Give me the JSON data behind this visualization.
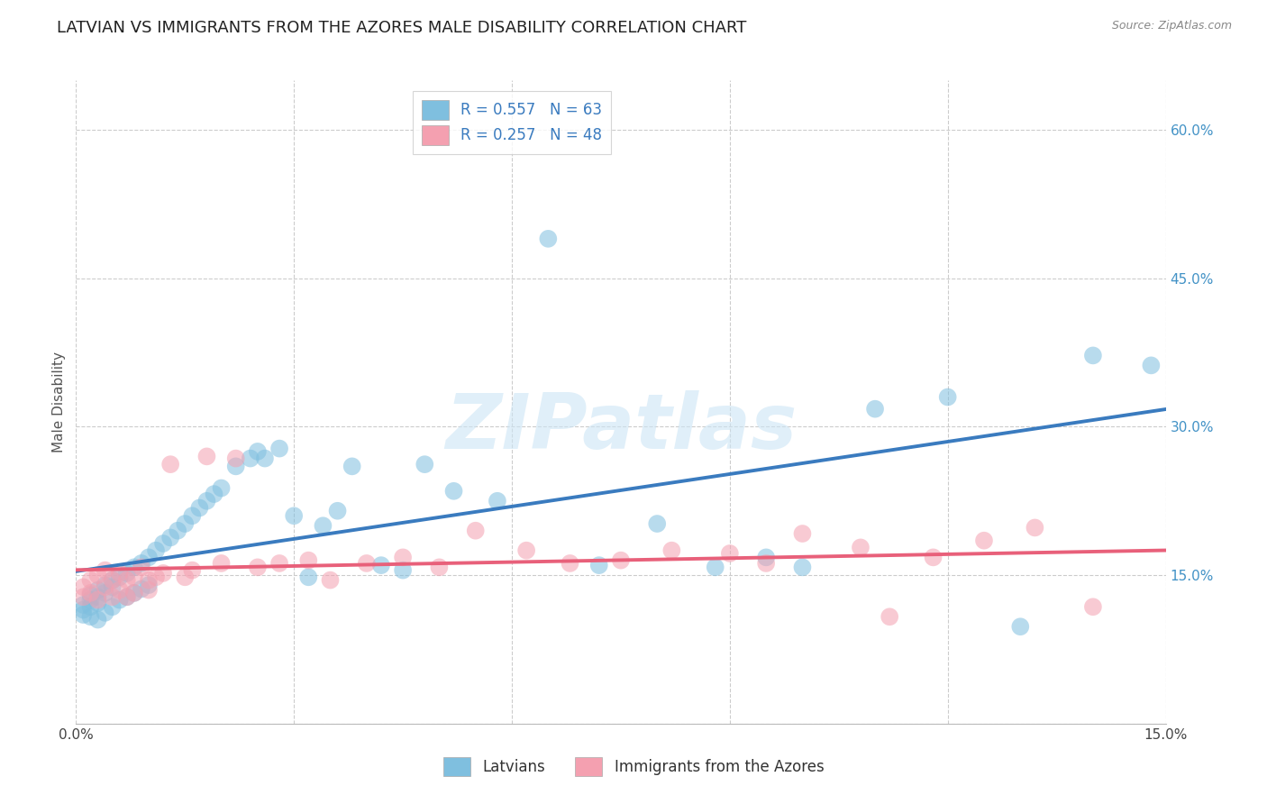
{
  "title": "LATVIAN VS IMMIGRANTS FROM THE AZORES MALE DISABILITY CORRELATION CHART",
  "source": "Source: ZipAtlas.com",
  "ylabel": "Male Disability",
  "x_min": 0.0,
  "x_max": 0.15,
  "y_min": 0.0,
  "y_max": 0.65,
  "x_ticks": [
    0.0,
    0.03,
    0.06,
    0.09,
    0.12,
    0.15
  ],
  "y_ticks": [
    0.0,
    0.15,
    0.3,
    0.45,
    0.6
  ],
  "watermark": "ZIPatlas",
  "legend_label1": "Latvians",
  "legend_label2": "Immigrants from the Azores",
  "blue_color": "#7fbfdf",
  "pink_color": "#f4a0b0",
  "blue_line_color": "#3a7bbf",
  "pink_line_color": "#e8607a",
  "background_color": "#ffffff",
  "grid_color": "#cccccc",
  "title_fontsize": 13,
  "axis_label_fontsize": 11,
  "tick_fontsize": 11,
  "legend_fontsize": 12,
  "latvian_x": [
    0.001,
    0.001,
    0.001,
    0.002,
    0.002,
    0.002,
    0.002,
    0.003,
    0.003,
    0.003,
    0.003,
    0.004,
    0.004,
    0.004,
    0.005,
    0.005,
    0.005,
    0.006,
    0.006,
    0.007,
    0.007,
    0.008,
    0.008,
    0.009,
    0.009,
    0.01,
    0.01,
    0.011,
    0.012,
    0.013,
    0.014,
    0.015,
    0.016,
    0.017,
    0.018,
    0.019,
    0.02,
    0.022,
    0.024,
    0.025,
    0.026,
    0.028,
    0.03,
    0.032,
    0.034,
    0.036,
    0.038,
    0.042,
    0.045,
    0.048,
    0.052,
    0.058,
    0.065,
    0.072,
    0.08,
    0.088,
    0.095,
    0.1,
    0.11,
    0.12,
    0.13,
    0.14,
    0.148
  ],
  "latvian_y": [
    0.12,
    0.115,
    0.11,
    0.13,
    0.125,
    0.118,
    0.108,
    0.135,
    0.128,
    0.122,
    0.105,
    0.14,
    0.132,
    0.112,
    0.145,
    0.138,
    0.118,
    0.148,
    0.125,
    0.152,
    0.128,
    0.158,
    0.132,
    0.162,
    0.136,
    0.168,
    0.14,
    0.175,
    0.182,
    0.188,
    0.195,
    0.202,
    0.21,
    0.218,
    0.225,
    0.232,
    0.238,
    0.26,
    0.268,
    0.275,
    0.268,
    0.278,
    0.21,
    0.148,
    0.2,
    0.215,
    0.26,
    0.16,
    0.155,
    0.262,
    0.235,
    0.225,
    0.49,
    0.16,
    0.202,
    0.158,
    0.168,
    0.158,
    0.318,
    0.33,
    0.098,
    0.372,
    0.362
  ],
  "azores_x": [
    0.001,
    0.001,
    0.002,
    0.002,
    0.003,
    0.003,
    0.004,
    0.004,
    0.005,
    0.005,
    0.006,
    0.006,
    0.007,
    0.007,
    0.008,
    0.008,
    0.009,
    0.01,
    0.01,
    0.011,
    0.012,
    0.013,
    0.015,
    0.016,
    0.018,
    0.02,
    0.022,
    0.025,
    0.028,
    0.032,
    0.035,
    0.04,
    0.045,
    0.05,
    0.055,
    0.062,
    0.068,
    0.075,
    0.082,
    0.09,
    0.095,
    0.1,
    0.108,
    0.112,
    0.118,
    0.125,
    0.132,
    0.14
  ],
  "azores_y": [
    0.138,
    0.128,
    0.145,
    0.132,
    0.15,
    0.125,
    0.155,
    0.138,
    0.145,
    0.128,
    0.152,
    0.135,
    0.145,
    0.128,
    0.148,
    0.132,
    0.158,
    0.145,
    0.135,
    0.148,
    0.152,
    0.262,
    0.148,
    0.155,
    0.27,
    0.162,
    0.268,
    0.158,
    0.162,
    0.165,
    0.145,
    0.162,
    0.168,
    0.158,
    0.195,
    0.175,
    0.162,
    0.165,
    0.175,
    0.172,
    0.162,
    0.192,
    0.178,
    0.108,
    0.168,
    0.185,
    0.198,
    0.118
  ]
}
